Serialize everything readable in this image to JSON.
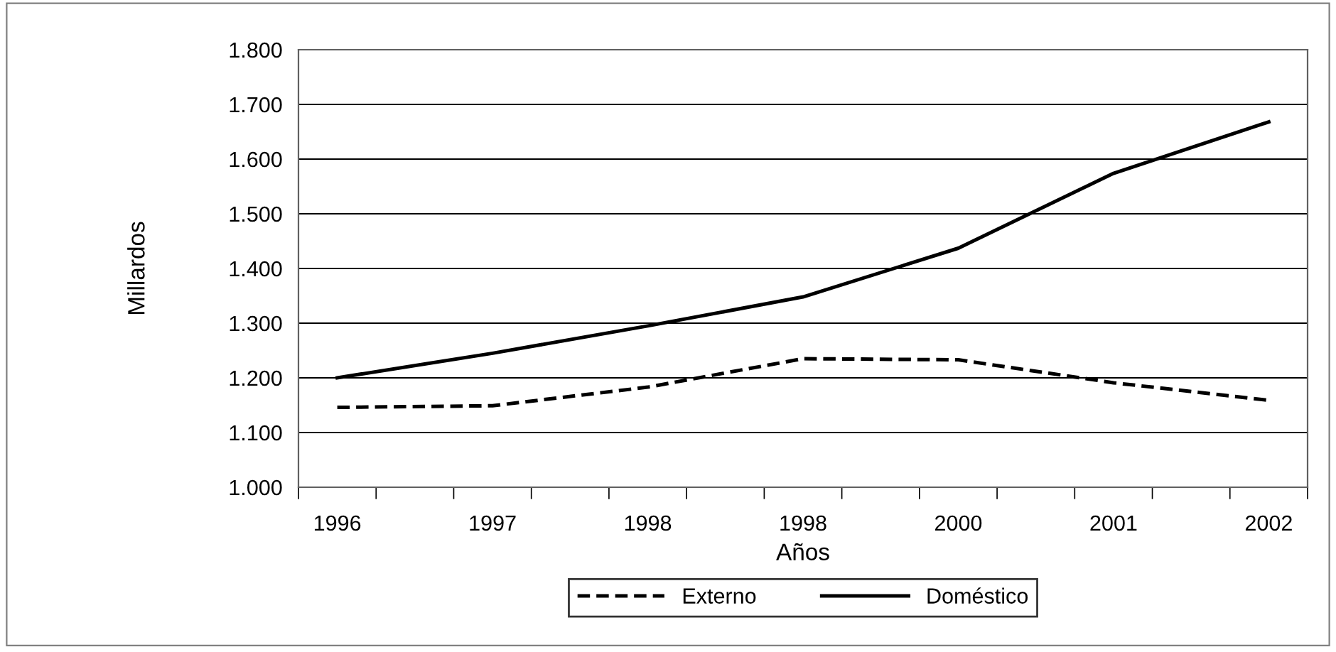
{
  "chart_data": {
    "type": "line",
    "xlabel": "Años",
    "ylabel": "Millardos",
    "categories": [
      "1996",
      "1997",
      "1998",
      "1998",
      "2000",
      "2001",
      "2002"
    ],
    "ylim": [
      1000,
      1800
    ],
    "yticks": [
      {
        "value": 1000,
        "label": "1.000"
      },
      {
        "value": 1100,
        "label": "1.100"
      },
      {
        "value": 1200,
        "label": "1.200"
      },
      {
        "value": 1300,
        "label": "1.300"
      },
      {
        "value": 1400,
        "label": "1.400"
      },
      {
        "value": 1500,
        "label": "1.500"
      },
      {
        "value": 1600,
        "label": "1.600"
      },
      {
        "value": 1700,
        "label": "1.700"
      },
      {
        "value": 1800,
        "label": "1.800"
      }
    ],
    "grid": "y",
    "legend": "bottom",
    "marker": "none",
    "series": [
      {
        "name": "Externo",
        "color": "#000000",
        "line_style": "dashed",
        "values": [
          1146,
          1149,
          1183,
          1235,
          1233,
          1191,
          1159
        ]
      },
      {
        "name": "Doméstico",
        "color": "#000000",
        "line_style": "solid",
        "values": [
          1200,
          1245,
          1295,
          1348,
          1437,
          1574,
          1668
        ]
      }
    ]
  }
}
